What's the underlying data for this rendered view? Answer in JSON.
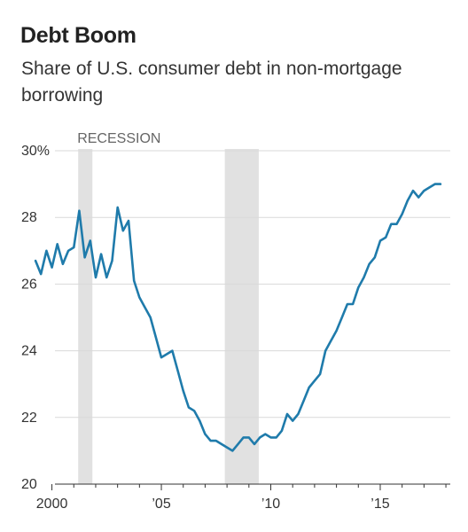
{
  "chart_data": {
    "type": "line",
    "title": "Debt Boom",
    "subtitle": "Share of U.S. consumer debt in non-mortgage borrowing",
    "xlabel": "",
    "ylabel": "",
    "ylim": [
      20,
      30
    ],
    "xlim": [
      1998.6,
      2018.2
    ],
    "y_ticks": [
      20,
      22,
      24,
      26,
      28,
      30
    ],
    "y_tick_labels": [
      "20",
      "22",
      "24",
      "26",
      "28",
      "30%"
    ],
    "x_ticks": [
      2000,
      2005,
      2010,
      2015
    ],
    "x_tick_labels": [
      "2000",
      "’05",
      "’10",
      "’15"
    ],
    "grid": true,
    "recessions": [
      {
        "start": 2001.2,
        "end": 2001.85,
        "label": "RECESSION"
      },
      {
        "start": 2007.9,
        "end": 2009.45,
        "label": ""
      }
    ],
    "series": [
      {
        "color": "#1f7bab",
        "points": [
          [
            1999.25,
            26.7
          ],
          [
            1999.5,
            26.3
          ],
          [
            1999.75,
            27.0
          ],
          [
            2000.0,
            26.5
          ],
          [
            2000.25,
            27.2
          ],
          [
            2000.5,
            26.6
          ],
          [
            2000.75,
            27.0
          ],
          [
            2001.0,
            27.1
          ],
          [
            2001.25,
            28.2
          ],
          [
            2001.5,
            26.8
          ],
          [
            2001.75,
            27.3
          ],
          [
            2002.0,
            26.2
          ],
          [
            2002.25,
            26.9
          ],
          [
            2002.5,
            26.2
          ],
          [
            2002.75,
            26.7
          ],
          [
            2003.0,
            28.3
          ],
          [
            2003.25,
            27.6
          ],
          [
            2003.5,
            27.9
          ],
          [
            2003.75,
            26.1
          ],
          [
            2004.0,
            25.6
          ],
          [
            2004.25,
            25.3
          ],
          [
            2004.5,
            25.0
          ],
          [
            2004.75,
            24.4
          ],
          [
            2005.0,
            23.8
          ],
          [
            2005.25,
            23.9
          ],
          [
            2005.5,
            24.0
          ],
          [
            2005.75,
            23.4
          ],
          [
            2006.0,
            22.8
          ],
          [
            2006.25,
            22.3
          ],
          [
            2006.5,
            22.2
          ],
          [
            2006.75,
            21.9
          ],
          [
            2007.0,
            21.5
          ],
          [
            2007.25,
            21.3
          ],
          [
            2007.5,
            21.3
          ],
          [
            2007.75,
            21.2
          ],
          [
            2008.0,
            21.1
          ],
          [
            2008.25,
            21.0
          ],
          [
            2008.5,
            21.2
          ],
          [
            2008.75,
            21.4
          ],
          [
            2009.0,
            21.4
          ],
          [
            2009.25,
            21.2
          ],
          [
            2009.5,
            21.4
          ],
          [
            2009.75,
            21.5
          ],
          [
            2010.0,
            21.4
          ],
          [
            2010.25,
            21.4
          ],
          [
            2010.5,
            21.6
          ],
          [
            2010.75,
            22.1
          ],
          [
            2011.0,
            21.9
          ],
          [
            2011.25,
            22.1
          ],
          [
            2011.5,
            22.5
          ],
          [
            2011.75,
            22.9
          ],
          [
            2012.0,
            23.1
          ],
          [
            2012.25,
            23.3
          ],
          [
            2012.5,
            24.0
          ],
          [
            2012.75,
            24.3
          ],
          [
            2013.0,
            24.6
          ],
          [
            2013.25,
            25.0
          ],
          [
            2013.5,
            25.4
          ],
          [
            2013.75,
            25.4
          ],
          [
            2014.0,
            25.9
          ],
          [
            2014.25,
            26.2
          ],
          [
            2014.5,
            26.6
          ],
          [
            2014.75,
            26.8
          ],
          [
            2015.0,
            27.3
          ],
          [
            2015.25,
            27.4
          ],
          [
            2015.5,
            27.8
          ],
          [
            2015.75,
            27.8
          ],
          [
            2016.0,
            28.1
          ],
          [
            2016.25,
            28.5
          ],
          [
            2016.5,
            28.8
          ],
          [
            2016.75,
            28.6
          ],
          [
            2017.0,
            28.8
          ],
          [
            2017.25,
            28.9
          ],
          [
            2017.5,
            29.0
          ],
          [
            2017.75,
            29.0
          ]
        ]
      }
    ]
  }
}
